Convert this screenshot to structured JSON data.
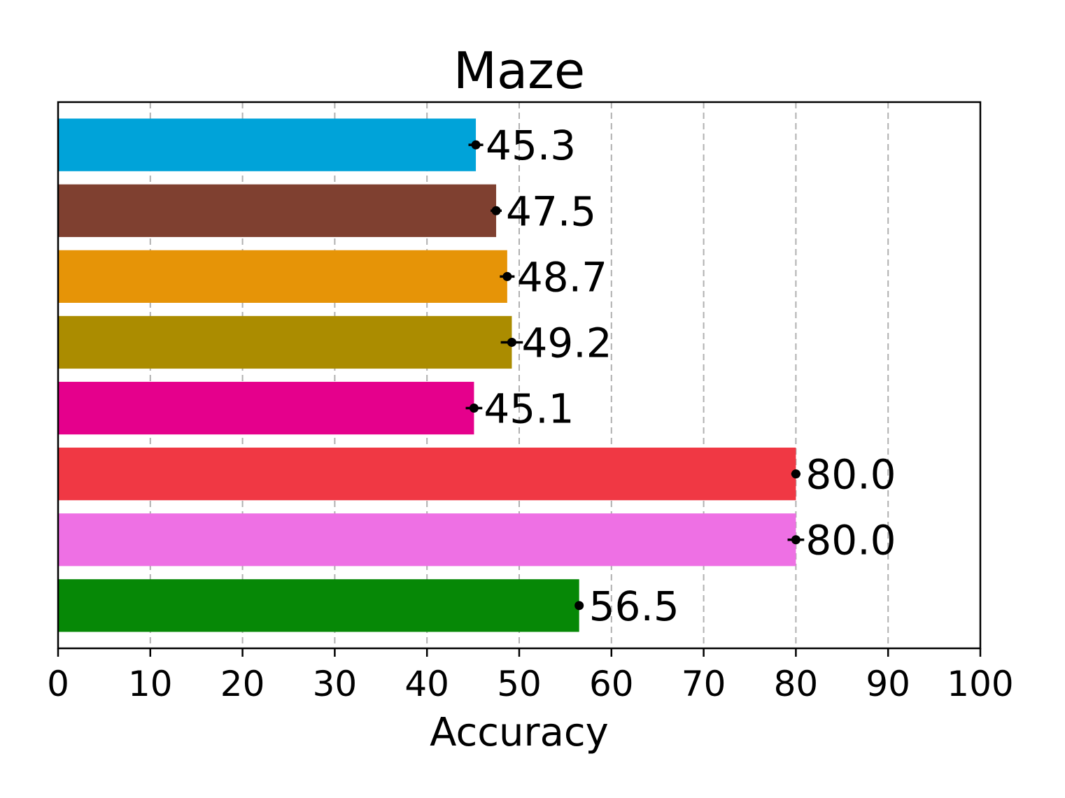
{
  "chart_data": {
    "type": "bar",
    "orientation": "horizontal",
    "title": "Maze",
    "xlabel": "Accuracy",
    "ylabel": "",
    "xlim": [
      0,
      100
    ],
    "xticks": [
      0,
      10,
      20,
      30,
      40,
      50,
      60,
      70,
      80,
      90,
      100
    ],
    "grid": "x, dashed",
    "bars": [
      {
        "value": 45.3,
        "label": "45.3",
        "error": 0.8,
        "color": "#00a3d9"
      },
      {
        "value": 47.5,
        "label": "47.5",
        "error": 0.6,
        "color": "#7f4030"
      },
      {
        "value": 48.7,
        "label": "48.7",
        "error": 0.8,
        "color": "#e69407"
      },
      {
        "value": 49.2,
        "label": "49.2",
        "error": 1.2,
        "color": "#ab8c00"
      },
      {
        "value": 45.1,
        "label": "45.1",
        "error": 0.9,
        "color": "#e5008c"
      },
      {
        "value": 80.0,
        "label": "80.0",
        "error": 0.5,
        "color": "#f03844"
      },
      {
        "value": 80.0,
        "label": "80.0",
        "error": 0.9,
        "color": "#ee70e4"
      },
      {
        "value": 56.5,
        "label": "56.5",
        "error": 0.0,
        "color": "#068806"
      }
    ]
  }
}
